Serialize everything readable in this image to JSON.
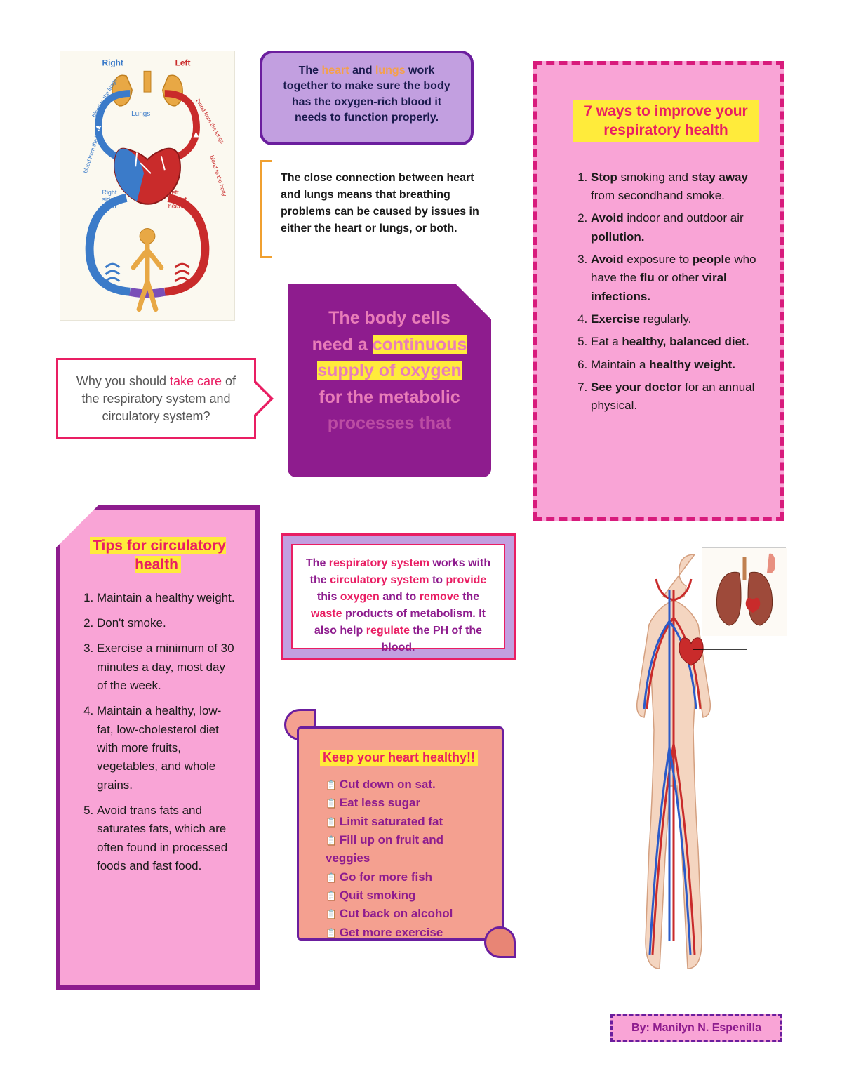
{
  "colors": {
    "purple_dark": "#6b1e9e",
    "purple_mid": "#8e1c8e",
    "lavender": "#c29fe0",
    "pink": "#f9a4d6",
    "magenta": "#e91e63",
    "salmon": "#f4a090",
    "yellow_hl": "#ffeb3b",
    "orange": "#f5a04a",
    "navy": "#1a1a4d"
  },
  "fonts": {
    "family": "Comic Sans MS",
    "base_size": 17
  },
  "diagram": {
    "labels": {
      "right": "Right",
      "left": "Left",
      "lungs": "Lungs",
      "right_side": "Right side of heart",
      "left_side": "Left side of heart",
      "bft": "blood from the body",
      "btb": "blood to the body",
      "bfl": "blood from the lungs",
      "btl": "blood to the lungs"
    }
  },
  "top_purple": {
    "pre": "The ",
    "heart": "heart",
    "mid1": " and ",
    "lungs": "lungs",
    "rest": " work together to make sure the body has the oxygen-rich blood it needs to function properly."
  },
  "connection": "The close connection between heart and lungs means that breathing problems can be caused by issues in either the heart or lungs, or both.",
  "sidebar": {
    "title": "7 ways to improve your respiratory health",
    "items": [
      {
        "html": "<b>Stop</b> smoking and <b>stay away</b> from secondhand smoke."
      },
      {
        "html": "<b>Avoid</b> indoor and outdoor air <b>pollution.</b>"
      },
      {
        "html": "<b>Avoid</b> exposure to <b>people</b> who have the <b>flu</b> or other <b>viral infections.</b>"
      },
      {
        "html": "<b>Exercise</b> regularly."
      },
      {
        "html": "Eat a <b>healthy, balanced diet.</b>"
      },
      {
        "html": "Maintain a <b>healthy weight.</b>"
      },
      {
        "html": "<b>See your doctor</b> for an annual physical."
      }
    ]
  },
  "why": {
    "pre": "Why you should ",
    "tc": "take care",
    "post": " of the respiratory system and circulatory system?"
  },
  "cells": {
    "p1": "The body cells need a ",
    "h1": "continuous supply of oxygen",
    "p2": " for the metabolic",
    "p3": "processes that"
  },
  "tips": {
    "title": "Tips for circulatory health",
    "items": [
      "Maintain a healthy weight.",
      "Don't smoke.",
      "Exercise a minimum of 30 minutes a day, most day of the week.",
      "Maintain a healthy, low-fat, low-cholesterol diet with more fruits, vegetables, and whole grains.",
      "Avoid trans fats and saturates fats, which are often found in processed foods and fast food."
    ]
  },
  "resp": {
    "s1": "The ",
    "a1": "respiratory system",
    "s2": " works with the ",
    "a2": "circulatory system",
    "s3": " to ",
    "a3": "provide",
    "s4": " this ",
    "a4": "oxygen",
    "s5": " and to ",
    "a5": "remove",
    "s6": " the ",
    "a6": "waste",
    "s7": " products of metabolism. It also help ",
    "a7": "regulate",
    "s8": " the PH of the blood."
  },
  "scroll": {
    "title": "Keep your heart healthy!!",
    "items": [
      "Cut down on sat.",
      "Eat less sugar",
      "Limit saturated fat",
      "Fill up on fruit and veggies",
      "Go for more fish",
      "Quit smoking",
      "Cut back on alcohol",
      "Get more exercise"
    ]
  },
  "byline": "By: Manilyn N. Espenilla"
}
